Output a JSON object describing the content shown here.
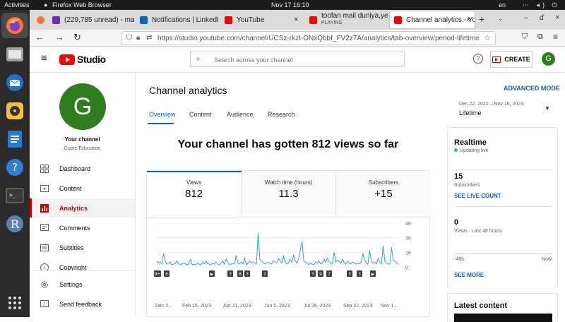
{
  "system": {
    "activities": "Activities",
    "app_name": "Firefox Web Browser",
    "clock": "Nov 17  16:10",
    "lang": "en"
  },
  "browser": {
    "tabs": [
      {
        "label": "(229,785 unread) - ma",
        "color": "#6b2fba"
      },
      {
        "label": "Notifications | LinkedIn",
        "color": "#0a66c2"
      },
      {
        "label": "YouTube",
        "color": "#ff0000"
      },
      {
        "label": "toofan mail duniya,ye",
        "sublabel": "PLAYING",
        "color": "#ff0000"
      },
      {
        "label": "Channel analytics - You",
        "color": "#ff0000"
      }
    ],
    "url": "https://studio.youtube.com/channel/UCSz-rkzt-ONxQbbf_FV2z7A/analytics/tab-overview/period-lifetime"
  },
  "header": {
    "logo_text": "Studio",
    "search_placeholder": "Search across your channel",
    "create_label": "CREATE",
    "avatar_letter": "G",
    "help_glyph": "?"
  },
  "sidebar": {
    "avatar_letter": "G",
    "channel_title": "Your channel",
    "channel_name": "Gupte Education",
    "items": [
      {
        "label": "Dashboard",
        "icon": "dashboard-icon"
      },
      {
        "label": "Content",
        "icon": "content-icon"
      },
      {
        "label": "Analytics",
        "icon": "analytics-icon"
      },
      {
        "label": "Comments",
        "icon": "comments-icon"
      },
      {
        "label": "Subtitles",
        "icon": "subtitles-icon"
      },
      {
        "label": "Copyright",
        "icon": "copyright-icon"
      },
      {
        "label": "Settings",
        "icon": "gear-icon"
      },
      {
        "label": "Send feedback",
        "icon": "feedback-icon"
      }
    ]
  },
  "main": {
    "title": "Channel analytics",
    "advanced_mode": "ADVANCED MODE",
    "tabs": [
      "Overview",
      "Content",
      "Audience",
      "Research"
    ],
    "date_range": "Dec 22, 2022 – Nov 16, 2023",
    "period": "Lifetime",
    "headline": "Your channel has gotten 812 views so far",
    "metrics": [
      {
        "label": "Views",
        "value": "812"
      },
      {
        "label": "Watch time (hours)",
        "value": "11.3"
      },
      {
        "label": "Subscribers",
        "value": "+15"
      }
    ]
  },
  "realtime": {
    "title": "Realtime",
    "status": "Updating live",
    "subs_value": "15",
    "subs_label": "Subscribers",
    "see_live": "SEE LIVE COUNT",
    "views_value": "0",
    "views_label": "Views · Last 48 hours",
    "axis_left": "-48h",
    "axis_right": "Now",
    "see_more": "SEE MORE"
  },
  "latest": {
    "title": "Latest content"
  },
  "chart_data": {
    "type": "line",
    "xlabel": "",
    "ylabel": "",
    "ylim": [
      0,
      45
    ],
    "y_ticks": [
      "45",
      "30",
      "15",
      "0"
    ],
    "x_ticks": [
      "Dec 2...",
      "Feb 15, 2023",
      "Apr 11, 2023",
      "Jun 5, 2023",
      "Jul 29, 2023",
      "Sep 22, 2023",
      "Nov 1..."
    ],
    "upload_markers": [
      "9+",
      "6",
      "▶",
      "3",
      "8",
      "3",
      "2",
      "3",
      "9",
      "7",
      "3",
      "3",
      "▶"
    ],
    "series": [
      {
        "values": [
          6,
          4,
          5,
          3,
          14,
          6,
          3,
          4,
          5,
          2,
          3,
          4,
          6,
          3,
          2,
          3,
          4,
          3,
          2,
          3,
          8,
          2,
          3,
          2,
          4,
          3,
          2,
          5,
          3,
          6,
          4,
          3,
          2,
          4,
          3,
          5,
          3,
          2,
          4,
          6,
          3,
          8,
          5,
          2,
          3,
          4,
          3,
          12,
          4,
          3,
          5,
          3,
          9,
          2,
          4,
          6,
          4,
          5,
          4,
          3,
          35,
          8,
          6,
          4,
          3,
          4,
          5,
          4,
          3,
          6,
          5,
          4,
          9,
          6,
          4,
          11,
          5,
          3,
          4,
          8,
          5,
          12,
          6,
          4,
          8,
          18,
          26,
          6,
          5,
          4,
          2,
          4,
          3,
          2,
          5,
          4,
          6,
          3,
          4,
          8,
          5,
          9,
          6,
          4,
          3,
          15,
          5,
          7,
          6,
          4,
          8,
          4,
          3,
          6,
          4,
          3,
          5,
          4,
          3,
          4,
          3,
          5,
          14,
          7,
          4,
          3,
          17,
          6,
          4,
          5,
          3,
          9,
          5,
          3,
          22,
          6,
          4,
          3,
          3,
          20,
          7,
          6,
          4,
          3
        ]
      }
    ]
  }
}
